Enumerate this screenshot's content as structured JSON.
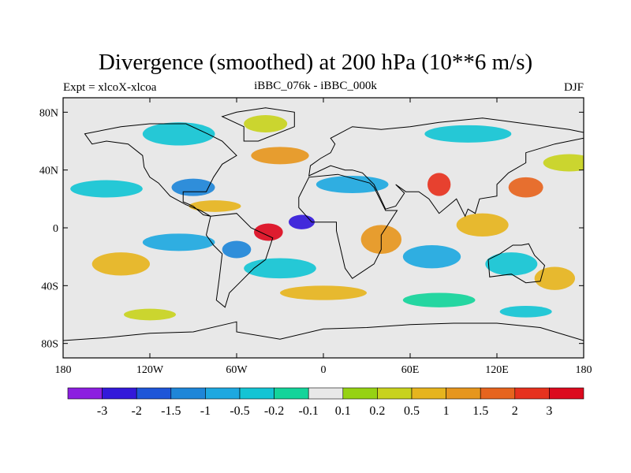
{
  "title": "Divergence (smoothed) at 200 hPa (10**6 m/s)",
  "left_label": "Expt = xlcoX-xlcoa",
  "center_label": "iBBC_076k - iBBC_000k",
  "right_label": "DJF",
  "colors": {
    "background_field": "#e8e8e8",
    "coast": "#000000"
  },
  "chart_data": {
    "type": "heatmap",
    "x_range": [
      -180,
      180
    ],
    "y_range": [
      -90,
      90
    ],
    "x_ticks": [
      {
        "value": -180,
        "label": "180"
      },
      {
        "value": -120,
        "label": "120W"
      },
      {
        "value": -60,
        "label": "60W"
      },
      {
        "value": 0,
        "label": "0"
      },
      {
        "value": 60,
        "label": "60E"
      },
      {
        "value": 120,
        "label": "120E"
      },
      {
        "value": 180,
        "label": "180"
      }
    ],
    "y_ticks": [
      {
        "value": 80,
        "label": "80N"
      },
      {
        "value": 40,
        "label": "40N"
      },
      {
        "value": 0,
        "label": "0"
      },
      {
        "value": -40,
        "label": "40S"
      },
      {
        "value": -80,
        "label": "80S"
      }
    ],
    "colorbar": {
      "labels": [
        "-3",
        "-2",
        "-1.5",
        "-1",
        "-0.5",
        "-0.2",
        "-0.1",
        "0.1",
        "0.2",
        "0.5",
        "1",
        "1.5",
        "2",
        "3"
      ],
      "colors": [
        "#8c1fe0",
        "#3319d9",
        "#1e56d8",
        "#1e86d8",
        "#1ea8e0",
        "#14c4d4",
        "#14d49a",
        "#e8e8e8",
        "#96d214",
        "#c8d21e",
        "#e6b41e",
        "#e6961e",
        "#e6641e",
        "#e6321e",
        "#dc0a1e"
      ]
    },
    "features": [
      {
        "id": "trop-west-atlantic-pos",
        "lon": -38,
        "lat": -3,
        "rx": 10,
        "ry": 6,
        "level": 14
      },
      {
        "id": "trop-atlantic-neg",
        "lon": -15,
        "lat": 4,
        "rx": 9,
        "ry": 5,
        "level": 1
      },
      {
        "id": "tibet-pos",
        "lon": 80,
        "lat": 30,
        "rx": 8,
        "ry": 8,
        "level": 13
      },
      {
        "id": "japan-pos",
        "lon": 140,
        "lat": 28,
        "rx": 12,
        "ry": 7,
        "level": 12
      },
      {
        "id": "east-africa-pos",
        "lon": 40,
        "lat": -8,
        "rx": 14,
        "ry": 10,
        "level": 11
      },
      {
        "id": "indonesia-pos",
        "lon": 110,
        "lat": 2,
        "rx": 18,
        "ry": 8,
        "level": 10
      },
      {
        "id": "nw-pacific-neg",
        "lon": -150,
        "lat": 27,
        "rx": 25,
        "ry": 6,
        "level": 5
      },
      {
        "id": "na-neg",
        "lon": -90,
        "lat": 28,
        "rx": 15,
        "ry": 6,
        "level": 3
      },
      {
        "id": "nh-band-neg",
        "lon": 20,
        "lat": 30,
        "rx": 25,
        "ry": 6,
        "level": 4
      },
      {
        "id": "arctic-neg",
        "lon": -100,
        "lat": 65,
        "rx": 25,
        "ry": 8,
        "level": 5
      },
      {
        "id": "greenland-pos",
        "lon": -40,
        "lat": 72,
        "rx": 15,
        "ry": 6,
        "level": 9
      },
      {
        "id": "sh-pacific-pos",
        "lon": -140,
        "lat": -25,
        "rx": 20,
        "ry": 8,
        "level": 10
      },
      {
        "id": "sh-pacific-neg",
        "lon": -100,
        "lat": -10,
        "rx": 25,
        "ry": 6,
        "level": 4
      },
      {
        "id": "south-atl-neg",
        "lon": -30,
        "lat": -28,
        "rx": 25,
        "ry": 7,
        "level": 5
      },
      {
        "id": "indian-ocean-neg",
        "lon": 75,
        "lat": -20,
        "rx": 20,
        "ry": 8,
        "level": 4
      },
      {
        "id": "australia-neg",
        "lon": 130,
        "lat": -25,
        "rx": 18,
        "ry": 8,
        "level": 5
      },
      {
        "id": "south-pac-pos",
        "lon": 160,
        "lat": -35,
        "rx": 14,
        "ry": 8,
        "level": 10
      },
      {
        "id": "southern-ocean-pos",
        "lon": 0,
        "lat": -45,
        "rx": 30,
        "ry": 5,
        "level": 10
      },
      {
        "id": "southern-ocean-neg",
        "lon": 80,
        "lat": -50,
        "rx": 25,
        "ry": 5,
        "level": 6
      },
      {
        "id": "n-pacific-pos",
        "lon": 170,
        "lat": 45,
        "rx": 18,
        "ry": 6,
        "level": 9
      },
      {
        "id": "n-atlantic-pos",
        "lon": -30,
        "lat": 50,
        "rx": 20,
        "ry": 6,
        "level": 11
      },
      {
        "id": "siberia-neg",
        "lon": 100,
        "lat": 65,
        "rx": 30,
        "ry": 6,
        "level": 5
      },
      {
        "id": "caribbean-pos",
        "lon": -75,
        "lat": 15,
        "rx": 18,
        "ry": 4,
        "level": 10
      },
      {
        "id": "amazon-neg",
        "lon": -60,
        "lat": -15,
        "rx": 10,
        "ry": 6,
        "level": 3
      },
      {
        "id": "ant-pos",
        "lon": -120,
        "lat": -60,
        "rx": 18,
        "ry": 4,
        "level": 9
      },
      {
        "id": "ant-neg",
        "lon": 140,
        "lat": -58,
        "rx": 18,
        "ry": 4,
        "level": 5
      }
    ]
  }
}
